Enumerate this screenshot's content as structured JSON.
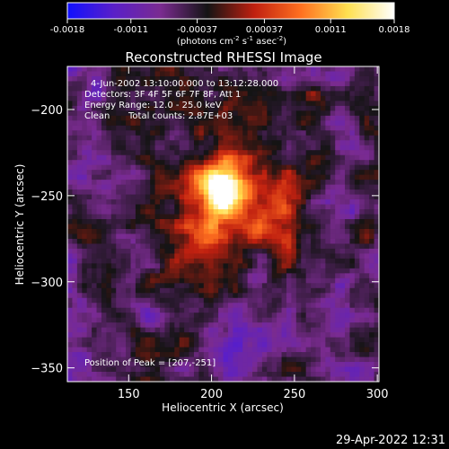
{
  "chart_data": {
    "type": "heatmap",
    "title": "Reconstructed RHESSI Image",
    "xlabel": "Heliocentric X (arcsec)",
    "ylabel": "Heliocentric Y (arcsec)",
    "xlim": [
      113,
      301
    ],
    "ylim": [
      -358,
      -175
    ],
    "x_ticks": [
      150,
      200,
      250,
      300
    ],
    "y_ticks": [
      -200,
      -250,
      -300,
      -350
    ],
    "colorbar": {
      "tick_labels": [
        "-0.0018",
        "-0.0011",
        "-0.00037",
        "0.00037",
        "0.0011",
        "0.0018"
      ],
      "tick_values": [
        -0.0018,
        -0.0011,
        -0.00037,
        0.00037,
        0.0011,
        0.0018
      ],
      "range": [
        -0.0018,
        0.0018
      ],
      "unit_prefix": "(photons cm",
      "unit_exp1": "-2",
      "unit_mid": " s",
      "unit_exp2": "-1",
      "unit_mid2": " asec",
      "unit_exp3": "-2",
      "unit_suffix": ")",
      "colors": [
        "#1010ff",
        "#5a1fc8",
        "#7a2b90",
        "#141414",
        "#c02010",
        "#ff7020",
        "#ffe050",
        "#ffffff"
      ]
    },
    "annotations": {
      "time": "4-Jun-2002 13:10:00.000 to 13:12:28.000",
      "detectors": "Detectors: 3F 4F 5F 6F 7F 8F, Att 1",
      "energy": "Energy Range: 12.0 - 25.0 keV",
      "algorithm": "Clean",
      "counts": "Total counts: 2.87E+03",
      "peak": "Position of Peak = [207,-251]"
    },
    "peak": {
      "x": 207,
      "y": -251
    },
    "footer_date": "29-Apr-2022 12:31"
  }
}
